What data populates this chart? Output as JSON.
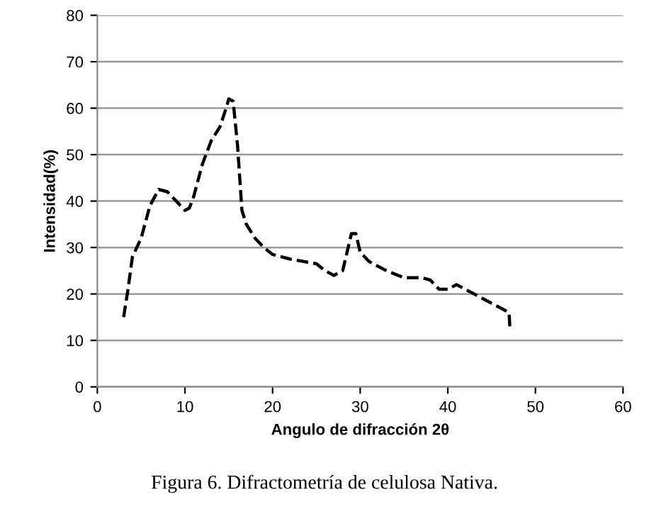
{
  "chart_data": {
    "type": "line",
    "xlabel": "Angulo de difracción 2θ",
    "ylabel": "Intensidad(%)",
    "x": [
      3,
      3.5,
      4,
      5,
      6,
      7,
      8,
      9,
      10,
      10.5,
      11,
      12,
      13,
      14,
      14.7,
      15,
      15.5,
      16,
      16.5,
      17,
      18,
      19,
      20,
      22,
      25,
      26,
      27,
      28,
      28.5,
      29,
      29.5,
      30,
      31,
      33,
      35,
      37,
      38,
      38.5,
      39,
      40,
      41,
      42,
      44,
      46,
      47,
      47.1
    ],
    "series": [
      {
        "color": "#000000",
        "values": [
          15,
          21,
          28,
          32,
          39,
          42.5,
          42,
          40,
          38,
          38.5,
          41,
          48,
          53,
          56,
          60,
          62,
          61.5,
          52,
          38,
          35,
          32,
          30,
          28.5,
          27.5,
          26.5,
          25,
          24,
          25,
          29,
          33,
          33,
          29,
          27,
          25,
          23.5,
          23.5,
          23,
          22,
          21,
          21,
          22,
          21,
          19,
          17,
          16,
          12
        ]
      }
    ],
    "xlim": [
      0,
      60
    ],
    "xticks": [
      0,
      10,
      20,
      30,
      40,
      50,
      60
    ],
    "ylim": [
      0,
      80
    ],
    "yticks": [
      0,
      10,
      20,
      30,
      40,
      50,
      60,
      70,
      80
    ],
    "grid": "y",
    "line_style": "dashed",
    "marker": "none",
    "legend": false,
    "annotations": [
      "Figura 6. Difractometría de celulosa Nativa."
    ]
  }
}
